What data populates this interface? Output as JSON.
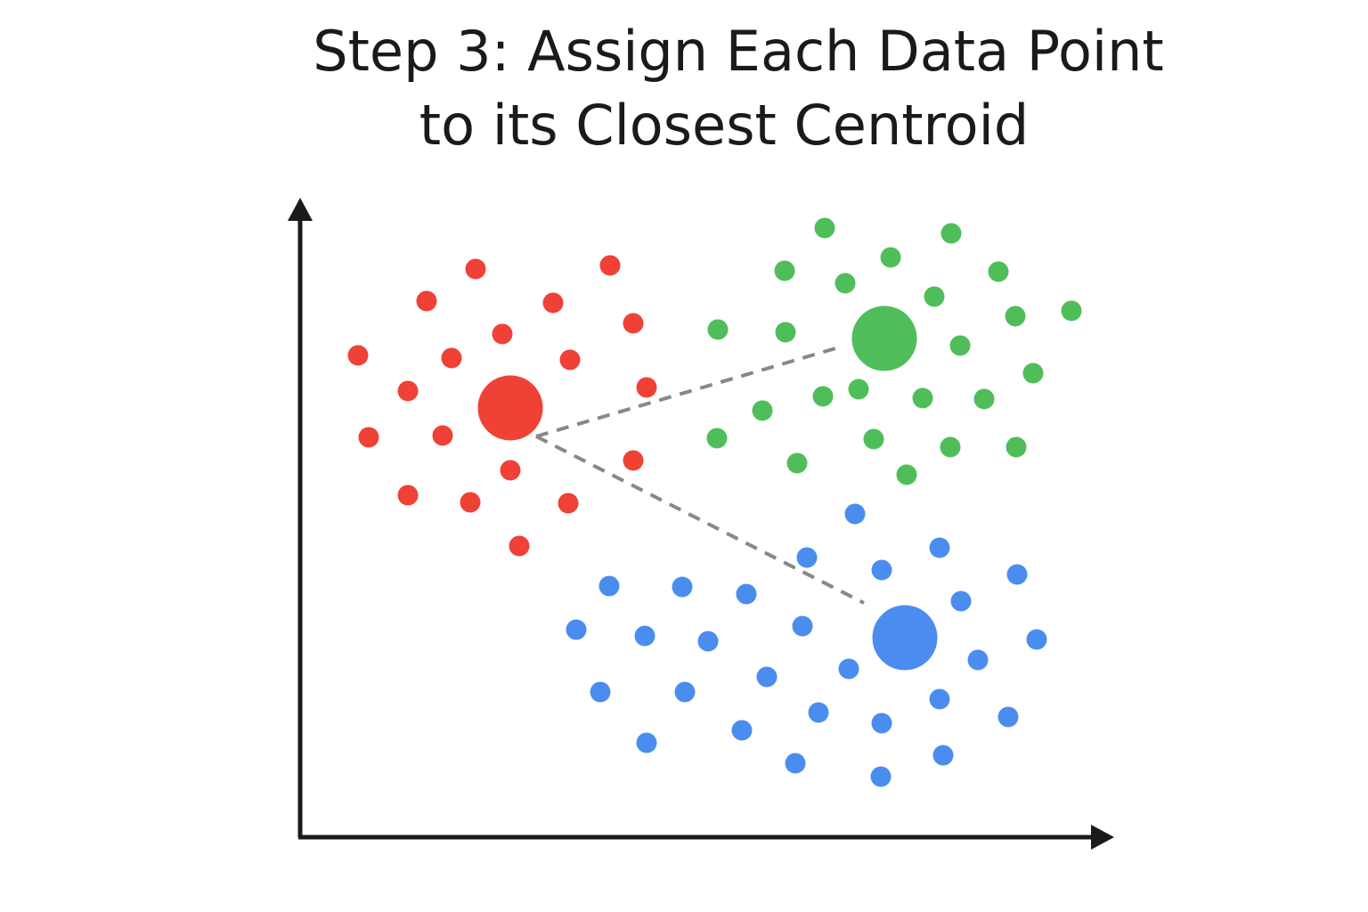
{
  "header": {
    "title_lines": [
      "Step 3: Assign Each Data Point",
      "to its Closest Centroid"
    ]
  }
}
